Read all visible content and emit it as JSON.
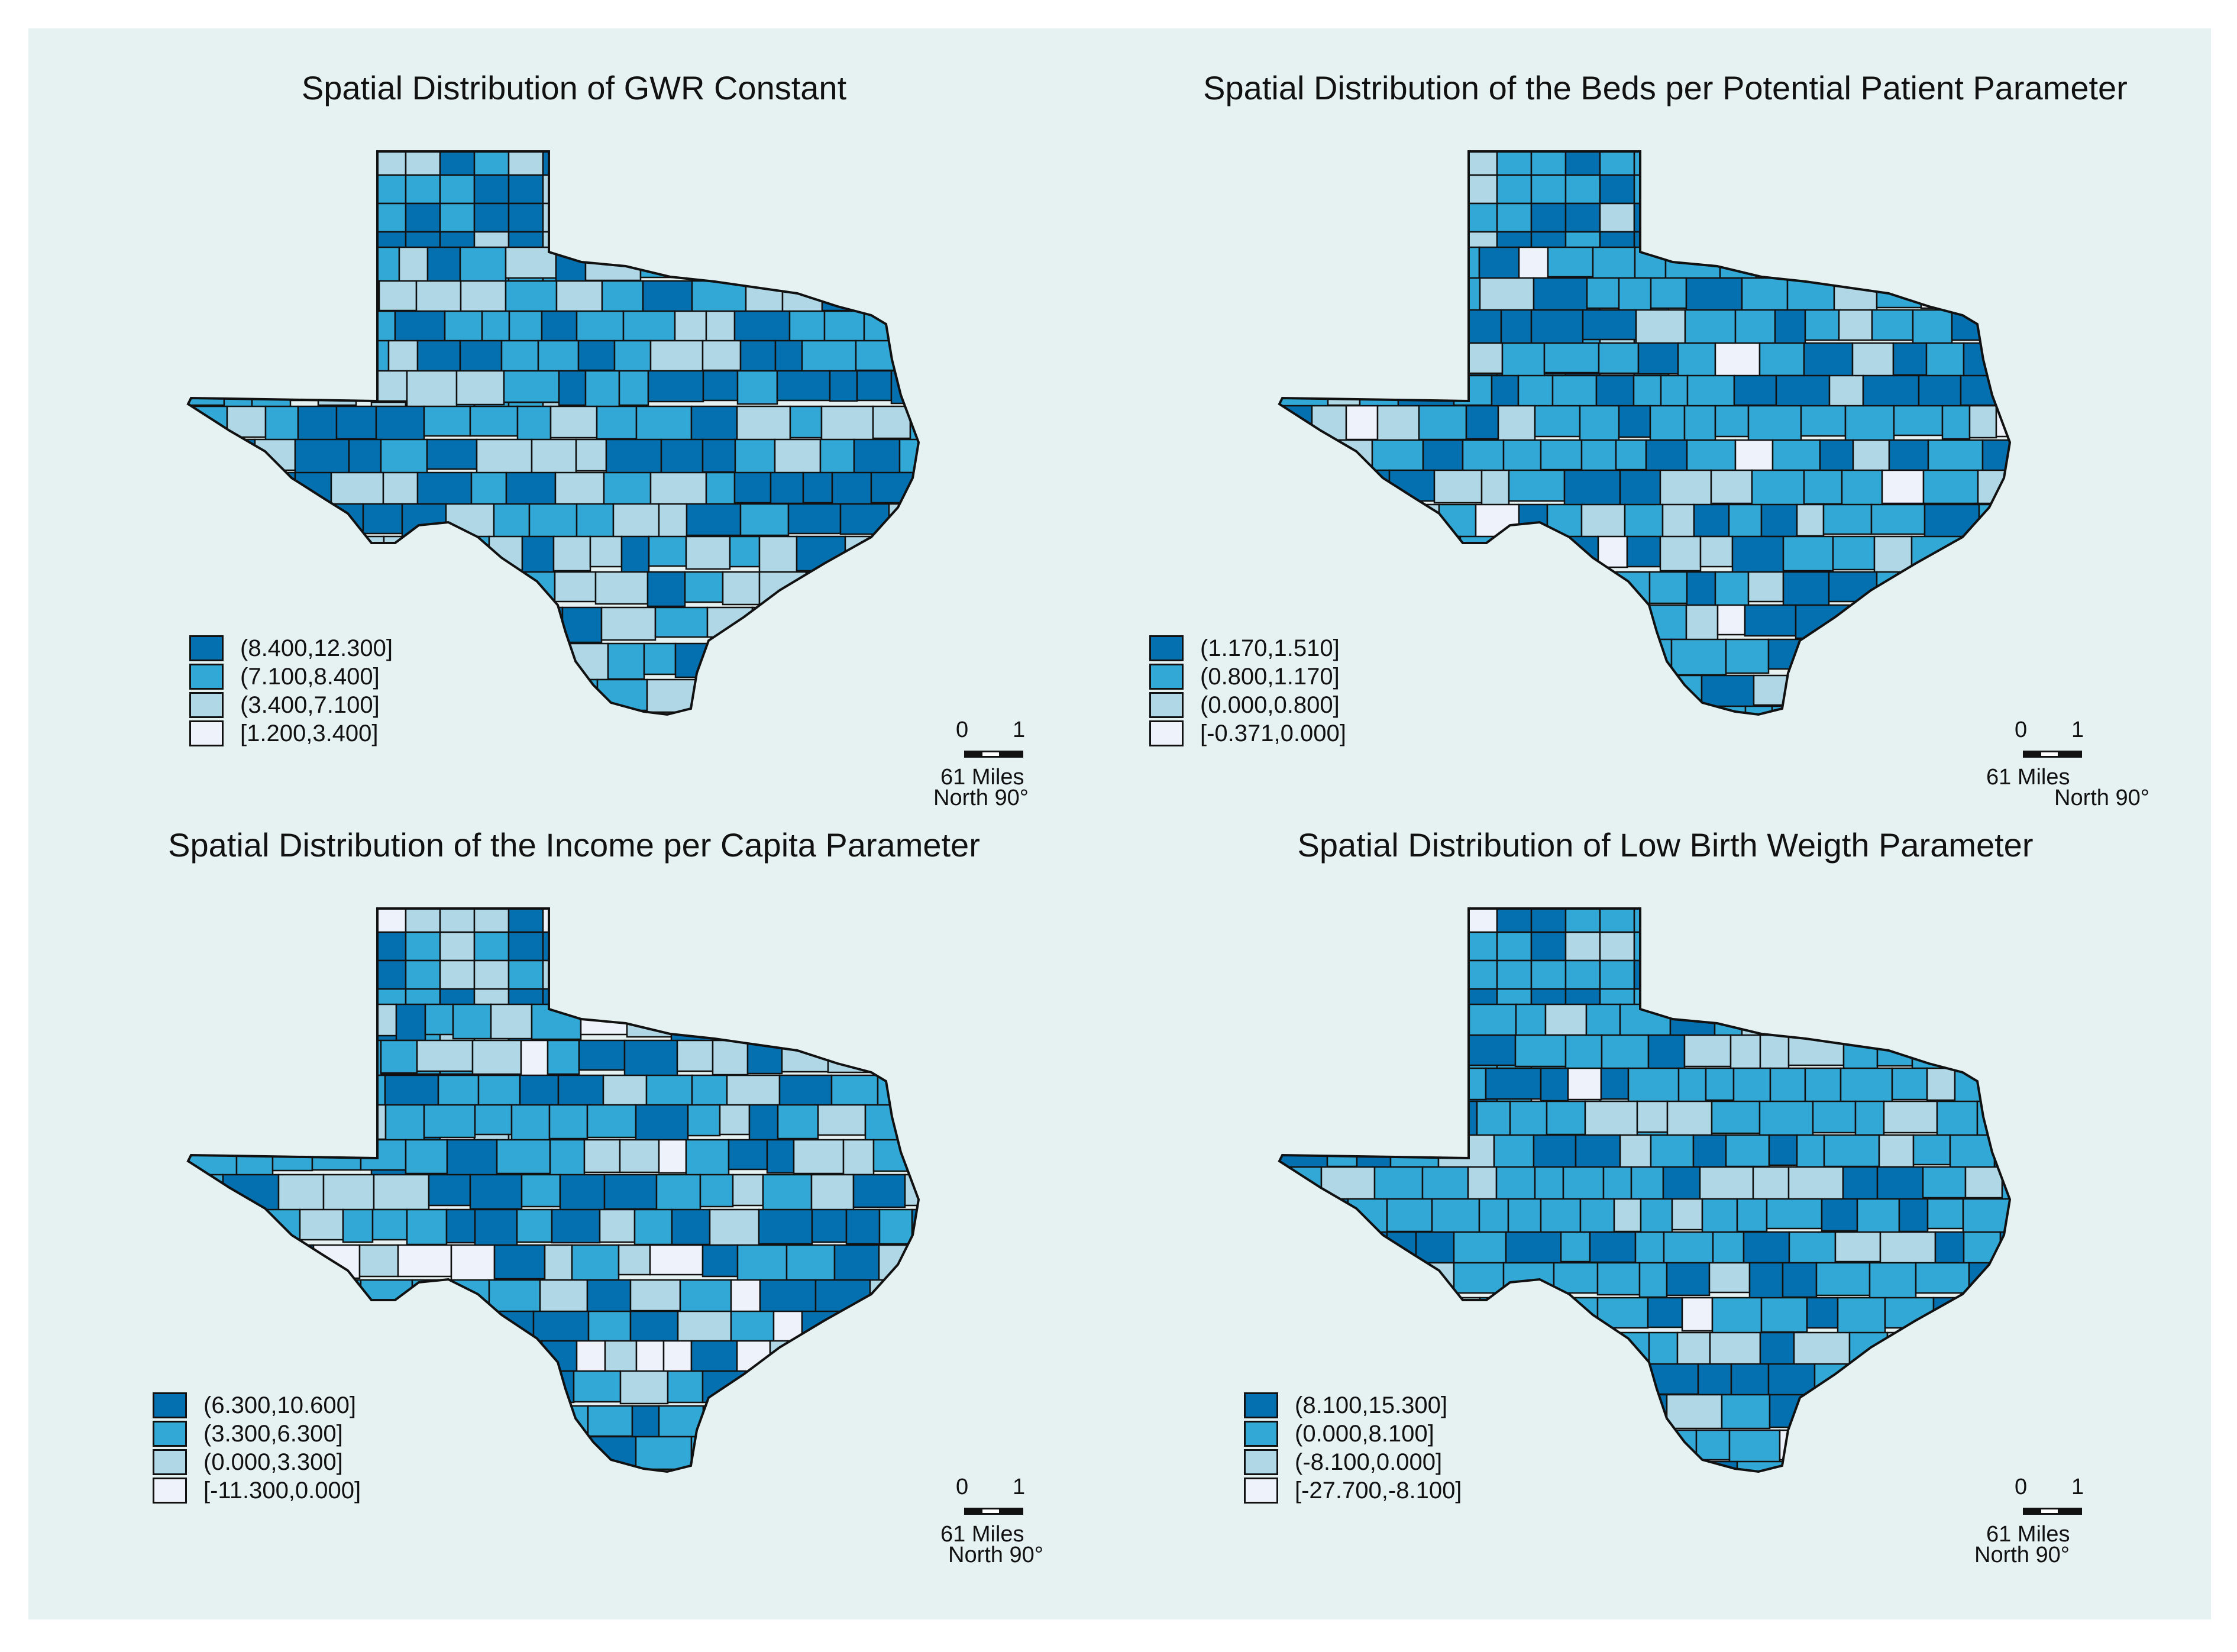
{
  "panels": [
    {
      "title": "Spatial Distribution of GWR Constant",
      "legend": [
        {
          "label": "(8.400,12.300]",
          "color": "#0570b0"
        },
        {
          "label": "(7.100,8.400]",
          "color": "#32a8d6"
        },
        {
          "label": "(3.400,7.100]",
          "color": "#b0d7e6"
        },
        {
          "label": "[1.200,3.400]",
          "color": "#eef3fb"
        }
      ],
      "class_share": [
        0.33,
        0.38,
        0.29,
        0.0
      ],
      "scale": {
        "zero": "0",
        "one": "1",
        "units": "61 Miles",
        "north": "North 90°"
      }
    },
    {
      "title": "Spatial Distribution of the Beds per Potential Patient Parameter",
      "legend": [
        {
          "label": "(1.170,1.510]",
          "color": "#0570b0"
        },
        {
          "label": "(0.800,1.170]",
          "color": "#32a8d6"
        },
        {
          "label": "(0.000,0.800]",
          "color": "#b0d7e6"
        },
        {
          "label": "[-0.371,0.000]",
          "color": "#eef3fb"
        }
      ],
      "class_share": [
        0.3,
        0.47,
        0.19,
        0.04
      ],
      "scale": {
        "zero": "0",
        "one": "1",
        "units": "61 Miles",
        "north": "North 90°"
      }
    },
    {
      "title": "Spatial Distribution of the Income per Capita Parameter",
      "legend": [
        {
          "label": "(6.300,10.600]",
          "color": "#0570b0"
        },
        {
          "label": "(3.300,6.300]",
          "color": "#32a8d6"
        },
        {
          "label": "(0.000,3.300]",
          "color": "#b0d7e6"
        },
        {
          "label": "[-11.300,0.000]",
          "color": "#eef3fb"
        }
      ],
      "class_share": [
        0.34,
        0.38,
        0.2,
        0.08
      ],
      "scale": {
        "zero": "0",
        "one": "1",
        "units": "61 Miles",
        "north": "North 90°"
      }
    },
    {
      "title": "Spatial Distribution of Low Birth Weigth Parameter",
      "legend": [
        {
          "label": "(8.100,15.300]",
          "color": "#0570b0"
        },
        {
          "label": "(0.000,8.100]",
          "color": "#32a8d6"
        },
        {
          "label": "(-8.100,0.000]",
          "color": "#b0d7e6"
        },
        {
          "label": "[-27.700,-8.100]",
          "color": "#eef3fb"
        }
      ],
      "class_share": [
        0.24,
        0.5,
        0.22,
        0.04
      ],
      "scale": {
        "zero": "0",
        "one": "1",
        "units": "61 Miles",
        "north": "North 90°"
      }
    }
  ]
}
